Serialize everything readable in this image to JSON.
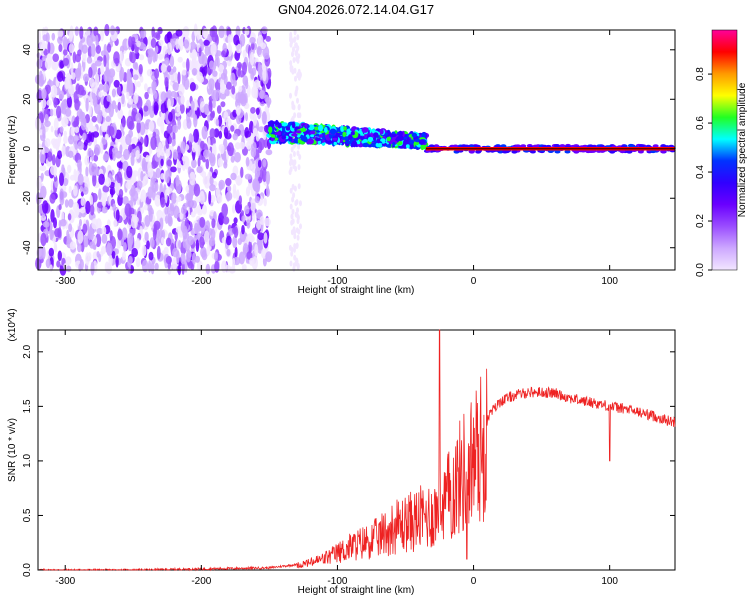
{
  "title": "GN04.2026.072.14.04.G17",
  "colors": {
    "snr_line": "#ee2222",
    "colormap": [
      "#f2e6ff",
      "#cda8ff",
      "#9a4dff",
      "#6a00ff",
      "#3000ff",
      "#0033ff",
      "#00ffff",
      "#22ff22",
      "#ffff00",
      "#ff9900",
      "#ff0000",
      "#ff0099"
    ]
  },
  "chart_data": [
    {
      "type": "heatmap",
      "xlabel": "Height of straight line (km)",
      "ylabel": "Frequency (Hz)",
      "xlim": [
        -320,
        148
      ],
      "ylim": [
        -49,
        48
      ],
      "xticks": [
        -300,
        -200,
        -100,
        0,
        100
      ],
      "yticks": [
        -40,
        -20,
        0,
        20,
        40
      ],
      "colorbar": {
        "label": "Normalized spectral amplitude",
        "range": [
          0.0,
          0.98
        ],
        "ticks": [
          "0.0",
          "0.2",
          "0.4",
          "0.6",
          "0.8"
        ]
      },
      "regions": [
        {
          "x_range": [
            -320,
            -150
          ],
          "freq_range": [
            -49,
            48
          ],
          "amplitude": "low (0.05-0.25)",
          "pattern": "scattered noise"
        },
        {
          "x_range": [
            -150,
            -35
          ],
          "freq_center": [
            7,
            3
          ],
          "amplitude": "0.3-0.6",
          "pattern": "narrowing band"
        },
        {
          "x_range": [
            -35,
            148
          ],
          "freq_center": 0,
          "amplitude": "0.9-1.0",
          "pattern": "narrow line"
        }
      ]
    },
    {
      "type": "line",
      "xlabel": "Height of straight line (km)",
      "ylabel": "SNR (10 * v/v)",
      "y_multiplier": "(x10^4)",
      "xlim": [
        -320,
        148
      ],
      "ylim": [
        0,
        2.2
      ],
      "xticks": [
        -300,
        -200,
        -100,
        0,
        100
      ],
      "yticks": [
        "0.0",
        "0.5",
        "1.0",
        "1.5",
        "2.0"
      ],
      "series": [
        {
          "x": [
            -320,
            -250,
            -200,
            -150,
            -130,
            -120,
            -110,
            -100,
            -90,
            -80,
            -70,
            -60,
            -50,
            -40,
            -30,
            -25,
            -20,
            -10,
            0,
            10,
            20,
            30,
            40,
            50,
            60,
            70,
            80,
            90,
            100,
            110,
            120,
            130,
            140,
            148
          ],
          "y": [
            0.0,
            0.0,
            0.01,
            0.02,
            0.05,
            0.08,
            0.12,
            0.18,
            0.25,
            0.3,
            0.35,
            0.45,
            0.5,
            0.55,
            0.6,
            0.65,
            0.75,
            1.0,
            1.2,
            1.4,
            1.55,
            1.6,
            1.63,
            1.63,
            1.62,
            1.58,
            1.55,
            1.53,
            1.5,
            1.48,
            1.45,
            1.42,
            1.38,
            1.35
          ]
        }
      ],
      "annotations": [
        {
          "x": -25,
          "y": 2.2,
          "note": "spike"
        },
        {
          "x": -5,
          "y": 0.1,
          "note": "dip"
        },
        {
          "x": 100,
          "y": 1.0,
          "note": "dip"
        }
      ]
    }
  ]
}
